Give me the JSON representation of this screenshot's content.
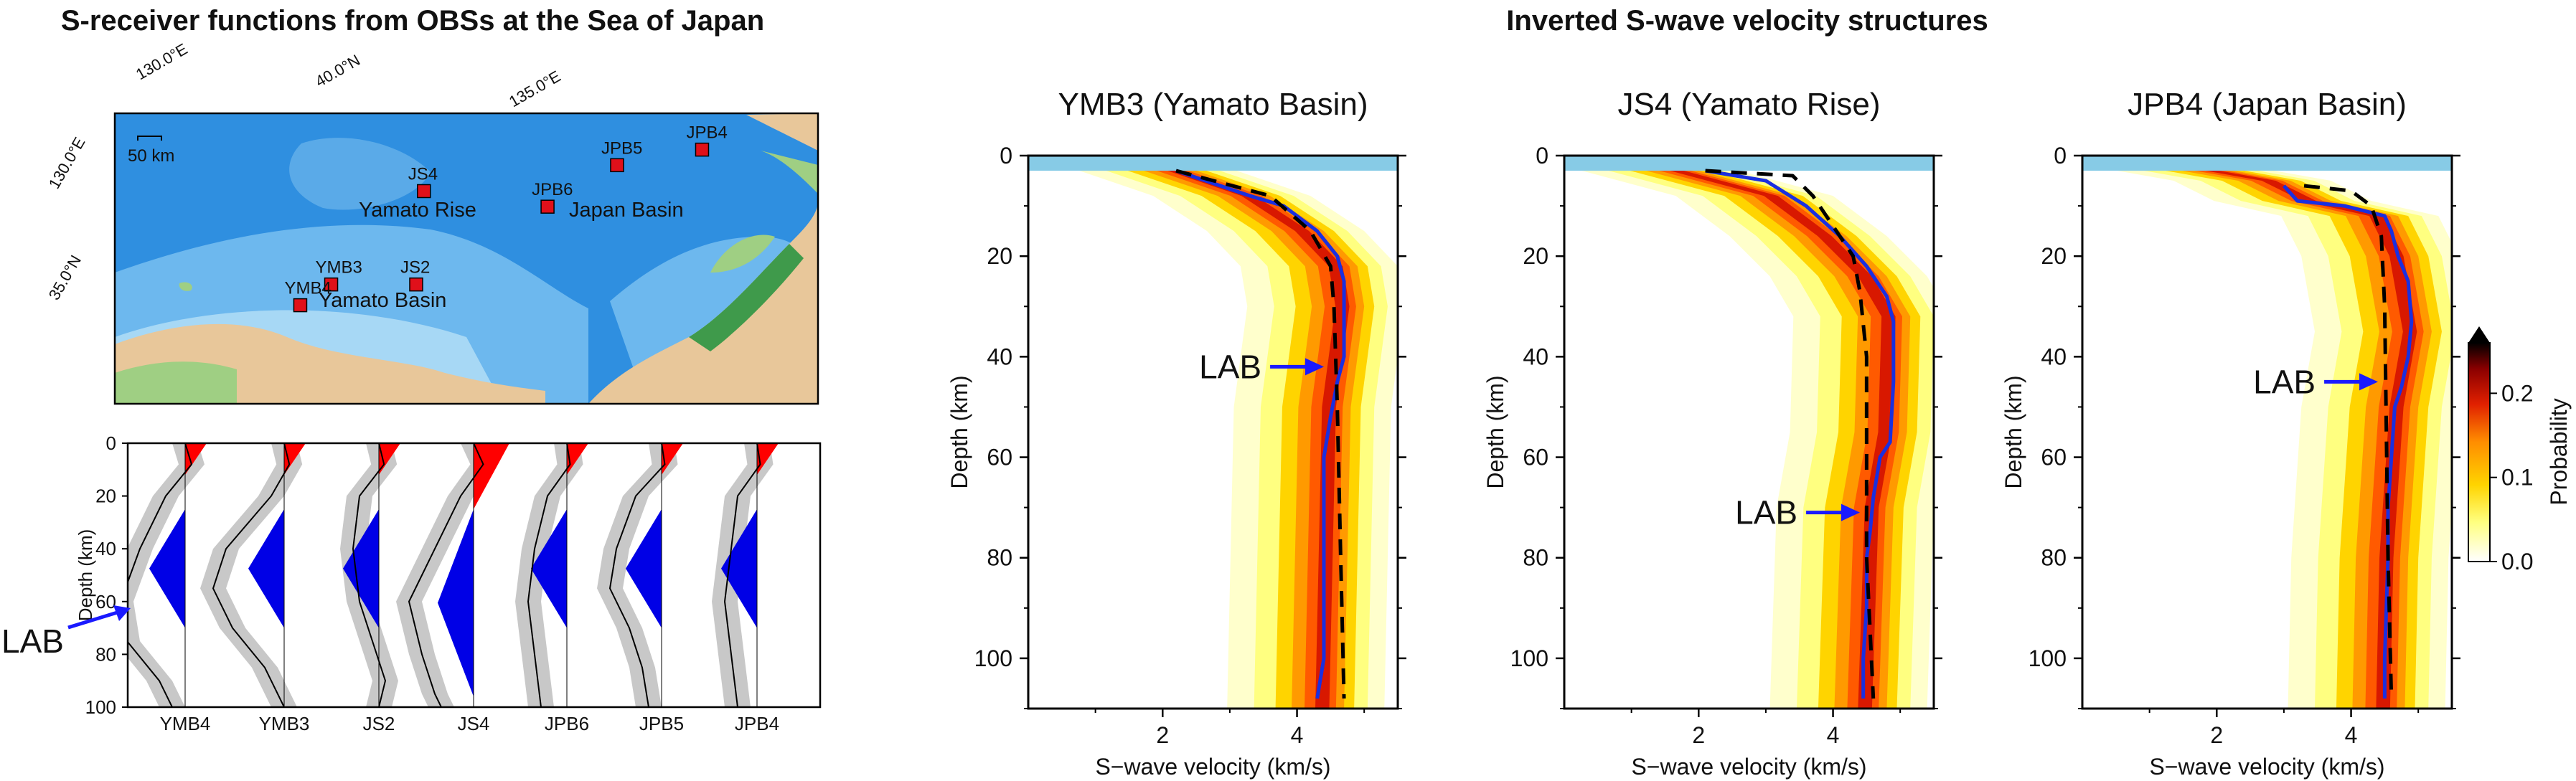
{
  "left_title": "S-receiver functions from OBSs at the Sea of Japan",
  "right_title": "Inverted S-wave velocity structures",
  "map": {
    "lon_labels": [
      "130.0°E",
      "135.0°E"
    ],
    "lat_label_top": "40.0°N",
    "left_labels": [
      "130.0°E",
      "35.0°N"
    ],
    "scale_label": "50 km",
    "stations": [
      {
        "name": "JS4",
        "lon": 133.2,
        "lat": 39.7
      },
      {
        "name": "JPB5",
        "lon": 135.7,
        "lat": 40.2
      },
      {
        "name": "JPB4",
        "lon": 136.8,
        "lat": 40.5
      },
      {
        "name": "JPB6",
        "lon": 134.8,
        "lat": 39.4
      },
      {
        "name": "YMB3",
        "lon": 132.0,
        "lat": 37.9
      },
      {
        "name": "JS2",
        "lon": 133.1,
        "lat": 37.9
      },
      {
        "name": "YMB4",
        "lon": 131.6,
        "lat": 37.5
      }
    ],
    "region_labels": [
      "Yamato Rise",
      "Japan Basin",
      "Yamato Basin"
    ]
  },
  "rf": {
    "ylabel": "Depth (km)",
    "yticks": [
      0,
      20,
      40,
      60,
      80,
      100
    ],
    "stations": [
      "YMB4",
      "YMB3",
      "JS2",
      "JS4",
      "JPB6",
      "JPB5",
      "JPB4"
    ],
    "lab_label": "LAB"
  },
  "chart_data": [
    {
      "type": "line",
      "title": "YMB3 (Yamato Basin)",
      "xlabel": "S−wave velocity (km/s)",
      "ylabel": "Depth (km)",
      "xlim": [
        0,
        5.5
      ],
      "ylim": [
        110,
        0
      ],
      "xticks": [
        2,
        4
      ],
      "yticks": [
        0,
        20,
        40,
        60,
        80,
        100
      ],
      "lab": {
        "label": "LAB",
        "depth": 42
      },
      "series": [
        {
          "style": "solid",
          "x": [
            2.2,
            3.3,
            3.8,
            4.3,
            4.6,
            4.7,
            4.7,
            4.7,
            4.6,
            4.5,
            4.4,
            4.4,
            4.4,
            4.3
          ],
          "y": [
            3,
            8,
            10,
            15,
            20,
            25,
            33,
            40,
            45,
            52,
            60,
            80,
            100,
            108
          ]
        },
        {
          "style": "dashed",
          "x": [
            2.2,
            3.6,
            4.2,
            4.5,
            4.55,
            4.6,
            4.65,
            4.7
          ],
          "y": [
            3,
            8,
            15,
            22,
            30,
            50,
            80,
            108
          ]
        }
      ],
      "heat": {
        "edges": [
          [
            0,
            2.2
          ],
          [
            3,
            2.2
          ],
          [
            8,
            3.3
          ],
          [
            15,
            4.1
          ],
          [
            22,
            4.6
          ],
          [
            30,
            4.7
          ],
          [
            50,
            4.5
          ],
          [
            80,
            4.45
          ],
          [
            110,
            4.4
          ]
        ],
        "narrow": [
          [
            3,
            0.3
          ],
          [
            12,
            0.35
          ],
          [
            25,
            0.45
          ],
          [
            50,
            0.55
          ],
          [
            110,
            0.7
          ]
        ]
      }
    },
    {
      "type": "line",
      "title": "JS4 (Yamato Rise)",
      "xlabel": "S−wave velocity (km/s)",
      "ylabel": "Depth (km)",
      "xlim": [
        0,
        5.5
      ],
      "ylim": [
        110,
        0
      ],
      "xticks": [
        2,
        4
      ],
      "yticks": [
        0,
        20,
        40,
        60,
        80,
        100
      ],
      "lab": {
        "label": "LAB",
        "depth": 71
      },
      "series": [
        {
          "style": "solid",
          "x": [
            2.1,
            3.0,
            3.6,
            4.1,
            4.5,
            4.8,
            4.9,
            4.9,
            4.85,
            4.7,
            4.6,
            4.55,
            4.5,
            4.5,
            4.45,
            4.45
          ],
          "y": [
            3,
            5,
            10,
            16,
            22,
            28,
            33,
            45,
            57,
            60,
            68,
            75,
            80,
            90,
            100,
            108
          ]
        },
        {
          "style": "dashed",
          "x": [
            2.1,
            3.4,
            3.7,
            4.0,
            4.3,
            4.4,
            4.5,
            4.5,
            4.6
          ],
          "y": [
            3,
            4,
            8,
            14,
            20,
            27,
            40,
            80,
            108
          ]
        }
      ],
      "heat": {
        "edges": [
          [
            0,
            1.7
          ],
          [
            3,
            1.7
          ],
          [
            8,
            3.1
          ],
          [
            16,
            3.9
          ],
          [
            24,
            4.5
          ],
          [
            32,
            4.85
          ],
          [
            55,
            4.8
          ],
          [
            70,
            4.6
          ],
          [
            110,
            4.5
          ]
        ],
        "narrow": [
          [
            3,
            0.4
          ],
          [
            12,
            0.4
          ],
          [
            25,
            0.45
          ],
          [
            50,
            0.55
          ],
          [
            110,
            0.7
          ]
        ]
      }
    },
    {
      "type": "line",
      "title": "JPB4 (Japan Basin)",
      "xlabel": "S−wave velocity (km/s)",
      "ylabel": "Depth (km)",
      "xlim": [
        0,
        5.5
      ],
      "ylim": [
        110,
        0
      ],
      "xticks": [
        2,
        4
      ],
      "yticks": [
        0,
        20,
        40,
        60,
        80,
        100
      ],
      "lab": {
        "label": "LAB",
        "depth": 45
      },
      "series": [
        {
          "style": "solid",
          "x": [
            3.0,
            3.2,
            3.9,
            4.5,
            4.6,
            4.7,
            4.85,
            4.9,
            4.85,
            4.75,
            4.65,
            4.6,
            4.55,
            4.55,
            4.5,
            4.5
          ],
          "y": [
            6,
            9,
            10,
            12,
            15,
            20,
            25,
            33,
            40,
            46,
            50,
            60,
            70,
            80,
            100,
            108
          ]
        },
        {
          "style": "dashed",
          "x": [
            3.3,
            4.0,
            4.3,
            4.45,
            4.5,
            4.55,
            4.6
          ],
          "y": [
            6,
            7,
            10,
            16,
            30,
            80,
            108
          ]
        }
      ],
      "heat": {
        "edges": [
          [
            0,
            0.7
          ],
          [
            5,
            2.8
          ],
          [
            9,
            3.4
          ],
          [
            12,
            4.4
          ],
          [
            20,
            4.7
          ],
          [
            35,
            4.9
          ],
          [
            50,
            4.7
          ],
          [
            80,
            4.55
          ],
          [
            110,
            4.5
          ]
        ],
        "narrow": [
          [
            3,
            0.4
          ],
          [
            12,
            0.35
          ],
          [
            25,
            0.45
          ],
          [
            50,
            0.55
          ],
          [
            110,
            0.7
          ]
        ]
      }
    }
  ],
  "colorbar": {
    "label": "Probability",
    "ticks": [
      0.0,
      0.1,
      0.2
    ],
    "tick_labels": [
      "0.0",
      "0.1",
      "0.2"
    ],
    "colors": [
      "#ffffff",
      "#ffff80",
      "#ffd400",
      "#ff8c00",
      "#e02000",
      "#8b0000",
      "#000000"
    ]
  }
}
